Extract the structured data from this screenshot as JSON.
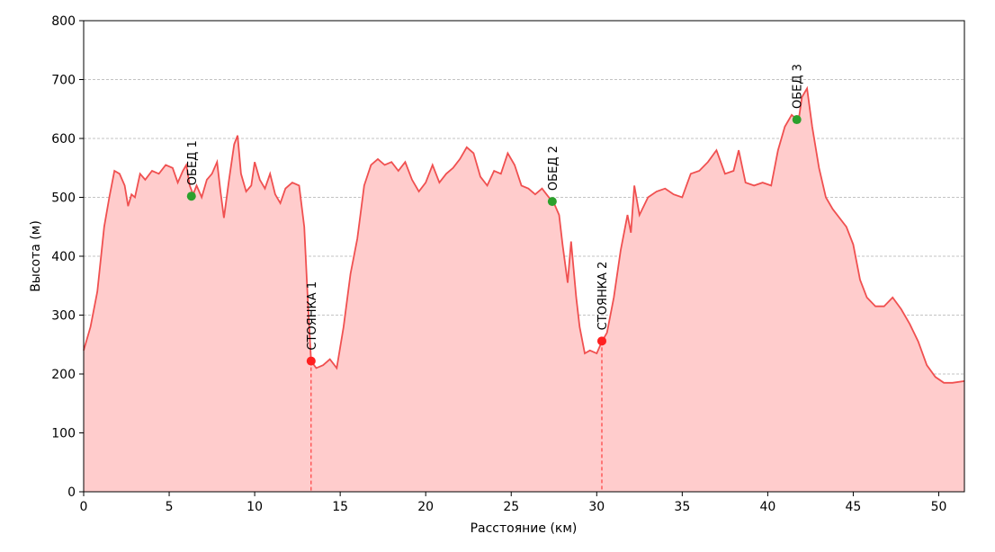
{
  "chart_data": {
    "type": "area",
    "xlabel": "Расстояние (км)",
    "ylabel": "Высота (м)",
    "color": "#f05050",
    "fill_color": "#ffcccc",
    "grid": true,
    "xlim": [
      0,
      51.5
    ],
    "ylim": [
      0,
      800
    ],
    "xticks": [
      0,
      5,
      10,
      15,
      20,
      25,
      30,
      35,
      40,
      45,
      50
    ],
    "yticks": [
      0,
      100,
      200,
      300,
      400,
      500,
      600,
      700,
      800
    ],
    "x": [
      0,
      0.4,
      0.8,
      1.2,
      1.5,
      1.8,
      2.1,
      2.4,
      2.6,
      2.8,
      3.0,
      3.3,
      3.6,
      4.0,
      4.4,
      4.8,
      5.2,
      5.5,
      5.8,
      6.0,
      6.2,
      6.4,
      6.6,
      6.9,
      7.2,
      7.5,
      7.8,
      8.0,
      8.2,
      8.5,
      8.8,
      9.0,
      9.2,
      9.5,
      9.8,
      10.0,
      10.3,
      10.6,
      10.9,
      11.2,
      11.5,
      11.8,
      12.2,
      12.6,
      12.9,
      13.1,
      13.3,
      13.6,
      14.0,
      14.4,
      14.8,
      15.2,
      15.6,
      16.0,
      16.4,
      16.8,
      17.2,
      17.6,
      18.0,
      18.4,
      18.8,
      19.2,
      19.6,
      20.0,
      20.4,
      20.8,
      21.2,
      21.6,
      22.0,
      22.4,
      22.8,
      23.2,
      23.6,
      24.0,
      24.4,
      24.8,
      25.2,
      25.6,
      26.0,
      26.4,
      26.8,
      27.2,
      27.5,
      27.8,
      28.0,
      28.3,
      28.5,
      28.8,
      29.0,
      29.3,
      29.6,
      30.0,
      30.3,
      30.6,
      31.0,
      31.4,
      31.8,
      32.0,
      32.2,
      32.5,
      33.0,
      33.5,
      34.0,
      34.5,
      35.0,
      35.5,
      36.0,
      36.5,
      37.0,
      37.5,
      38.0,
      38.3,
      38.7,
      39.2,
      39.7,
      40.2,
      40.6,
      41.0,
      41.4,
      41.8,
      42.0,
      42.3,
      42.6,
      43.0,
      43.4,
      43.8,
      44.2,
      44.6,
      45.0,
      45.4,
      45.8,
      46.3,
      46.8,
      47.3,
      47.8,
      48.3,
      48.8,
      49.3,
      49.8,
      50.3,
      50.8,
      51.5
    ],
    "values": [
      240,
      280,
      340,
      450,
      500,
      545,
      540,
      520,
      485,
      505,
      500,
      540,
      530,
      545,
      540,
      555,
      550,
      525,
      545,
      555,
      520,
      505,
      520,
      500,
      530,
      540,
      560,
      510,
      465,
      530,
      590,
      605,
      540,
      510,
      520,
      560,
      530,
      515,
      540,
      505,
      490,
      515,
      525,
      520,
      450,
      330,
      222,
      210,
      215,
      225,
      210,
      280,
      370,
      430,
      520,
      555,
      565,
      555,
      560,
      545,
      560,
      530,
      510,
      525,
      555,
      525,
      540,
      550,
      565,
      585,
      575,
      535,
      520,
      545,
      540,
      575,
      555,
      520,
      515,
      505,
      515,
      500,
      490,
      470,
      420,
      355,
      425,
      330,
      280,
      235,
      240,
      235,
      255,
      270,
      330,
      410,
      470,
      440,
      520,
      470,
      500,
      510,
      515,
      505,
      500,
      540,
      545,
      560,
      580,
      540,
      545,
      580,
      525,
      520,
      525,
      520,
      580,
      620,
      640,
      630,
      670,
      685,
      620,
      550,
      500,
      480,
      465,
      450,
      420,
      360,
      330,
      315,
      315,
      330,
      310,
      285,
      255,
      215,
      195,
      185,
      185,
      188
    ],
    "points": [
      {
        "label": "ОБЕД 1",
        "x": 6.3,
        "y": 502,
        "color": "#2ca02c",
        "dashed_line": false
      },
      {
        "label": "СТОЯНКА 1",
        "x": 13.3,
        "y": 222,
        "color": "#ff2020",
        "dashed_line": true
      },
      {
        "label": "ОБЕД 2",
        "x": 27.4,
        "y": 493,
        "color": "#2ca02c",
        "dashed_line": false
      },
      {
        "label": "СТОЯНКА 2",
        "x": 30.3,
        "y": 256,
        "color": "#ff2020",
        "dashed_line": true
      },
      {
        "label": "ОБЕД 3",
        "x": 41.7,
        "y": 632,
        "color": "#2ca02c",
        "dashed_line": false
      }
    ]
  }
}
